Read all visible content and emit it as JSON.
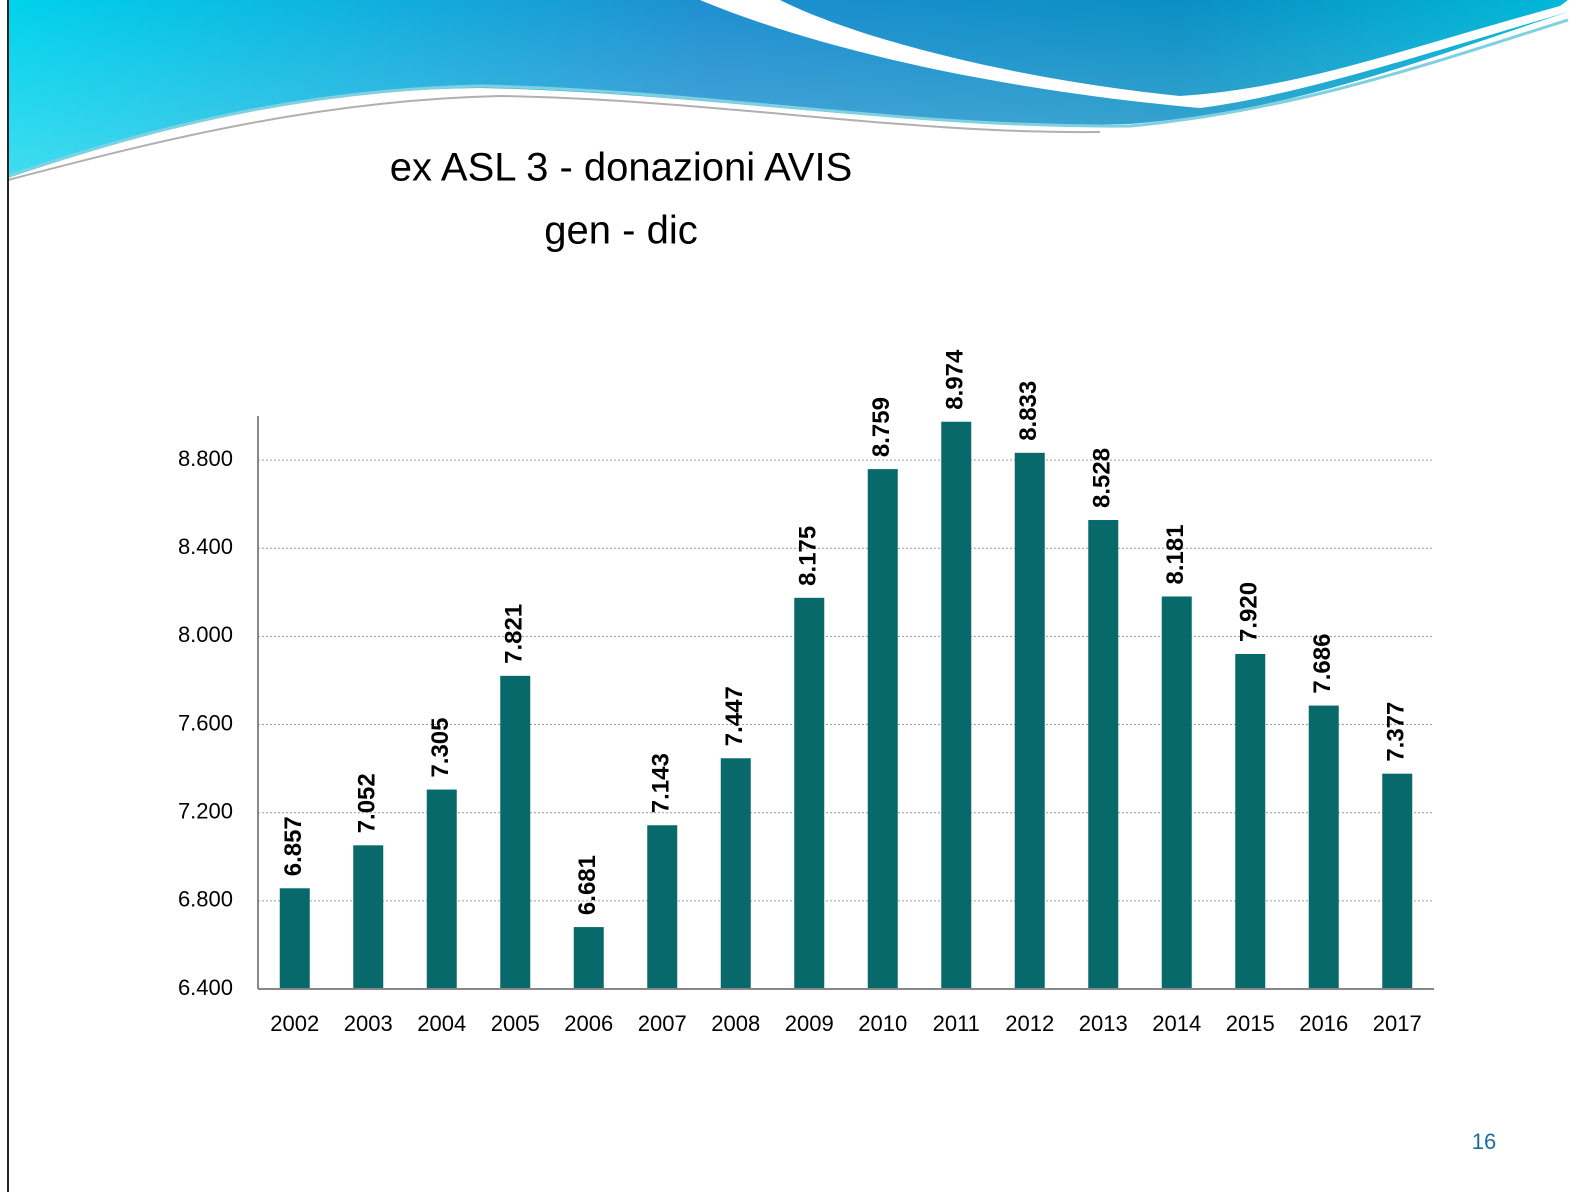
{
  "slide_number": "16",
  "chart_data": {
    "type": "bar",
    "title": "ex ASL 3 - donazioni AVIS",
    "subtitle": "gen - dic",
    "categories": [
      "2002",
      "2003",
      "2004",
      "2005",
      "2006",
      "2007",
      "2008",
      "2009",
      "2010",
      "2011",
      "2012",
      "2013",
      "2014",
      "2015",
      "2016",
      "2017"
    ],
    "values": [
      6857,
      7052,
      7305,
      7821,
      6681,
      7143,
      7447,
      8175,
      8759,
      8974,
      8833,
      8528,
      8181,
      7920,
      7686,
      7377
    ],
    "value_labels": [
      "6.857",
      "7.052",
      "7.305",
      "7.821",
      "6.681",
      "7.143",
      "7.447",
      "8.175",
      "8.759",
      "8.974",
      "8.833",
      "8.528",
      "8.181",
      "7.920",
      "7.686",
      "7.377"
    ],
    "color": "#08696b",
    "ylim": [
      6400,
      9000
    ],
    "yticks": [
      {
        "value": 6400,
        "label": "6.400"
      },
      {
        "value": 6800,
        "label": "6.800"
      },
      {
        "value": 7200,
        "label": "7.200"
      },
      {
        "value": 7600,
        "label": "7.600"
      },
      {
        "value": 8000,
        "label": "8.000"
      },
      {
        "value": 8400,
        "label": "8.400"
      },
      {
        "value": 8800,
        "label": "8.800"
      }
    ],
    "grid": true
  }
}
